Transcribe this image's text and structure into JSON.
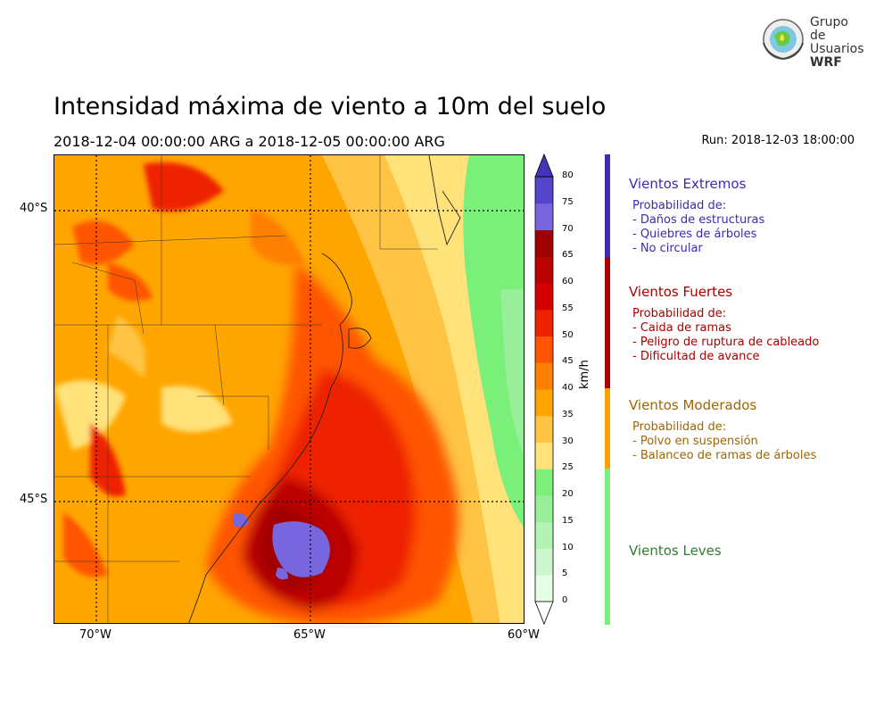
{
  "title": "Intensidad máxima de viento a 10m del suelo",
  "subtitle": "2018-12-04 00:00:00 ARG  a  2018-12-05 00:00:00 ARG",
  "run": "Run: 2018-12-03 18:00:00",
  "logo": {
    "line1": "Grupo de",
    "line2": "Usuarios",
    "line3": "WRF"
  },
  "map": {
    "lat_labels": [
      "40°S",
      "45°S"
    ],
    "lon_labels": [
      "70°W",
      "65°W",
      "60°W"
    ]
  },
  "colorbar": {
    "unit": "km/h",
    "ticks": [
      "0",
      "5",
      "10",
      "15",
      "20",
      "25",
      "30",
      "35",
      "40",
      "45",
      "50",
      "55",
      "60",
      "65",
      "70",
      "75",
      "80"
    ],
    "colors": [
      "#e6fde6",
      "#cdf8cd",
      "#b3f3b3",
      "#99ee99",
      "#7af07a",
      "#ffe27a",
      "#ffc444",
      "#ffa500",
      "#ff8000",
      "#ff5500",
      "#ee2200",
      "#d40000",
      "#bb0000",
      "#a00000",
      "#7766dd",
      "#5544cc",
      "#4433bb"
    ]
  },
  "legend": {
    "extremos": {
      "title": "Vientos Extremos",
      "color": "#3a2bb0",
      "lines": [
        "Probabilidad de:",
        "- Daños de estructuras",
        "- Quiebres de árboles",
        "- No circular"
      ]
    },
    "fuertes": {
      "title": "Vientos Fuertes",
      "color": "#aa0000",
      "lines": [
        "Probabilidad de:",
        "- Caida de ramas",
        "- Peligro de ruptura de cableado",
        "- Dificultad de avance"
      ]
    },
    "moderados": {
      "title": "Vientos Moderados",
      "color": "#a06500",
      "bar_color": "#ffa000",
      "lines": [
        "Probabilidad de:",
        "- Polvo en suspensión",
        "- Balanceo de ramas de árboles"
      ]
    },
    "leves": {
      "title": "Vientos Leves",
      "color": "#2f7d2f",
      "bar_color": "#7af07a"
    }
  }
}
